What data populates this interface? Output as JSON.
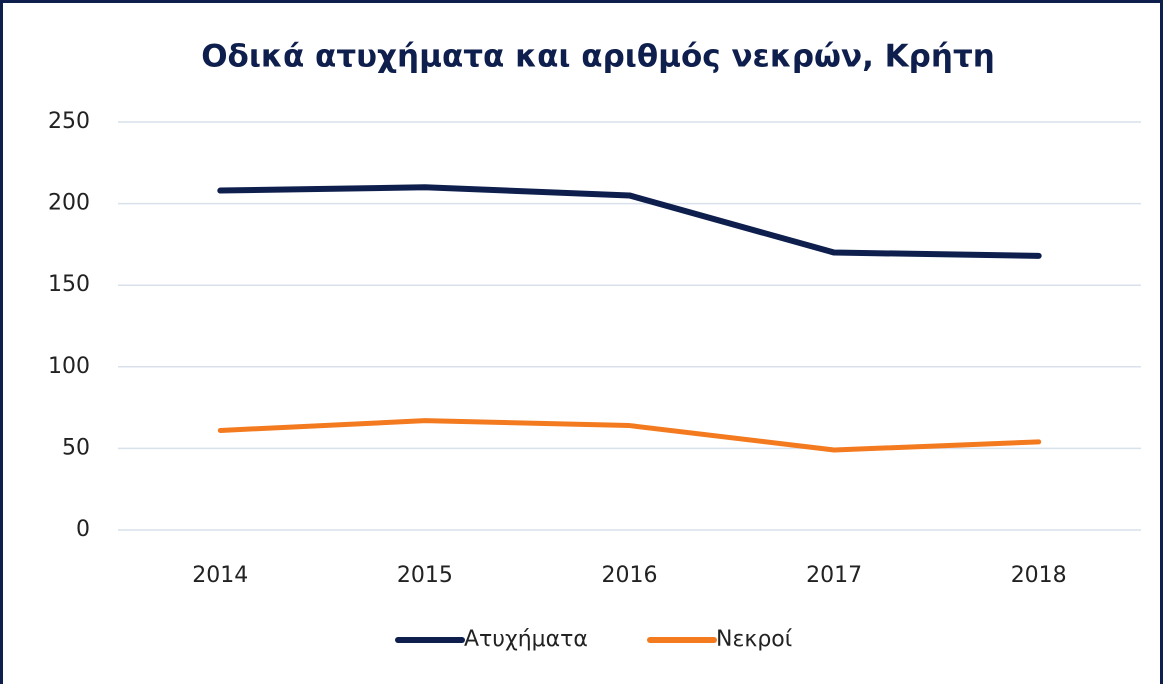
{
  "chart_data": {
    "type": "line",
    "title": "Οδικά ατυχήματα και αριθμός νεκρών, Κρήτη",
    "categories": [
      "2014",
      "2015",
      "2016",
      "2017",
      "2018"
    ],
    "series": [
      {
        "name": "Ατυχήματα",
        "color": "#0e1f4d",
        "values": [
          208,
          210,
          205,
          170,
          168
        ]
      },
      {
        "name": "Νεκροί",
        "color": "#f37a1f",
        "values": [
          61,
          67,
          64,
          49,
          54
        ]
      }
    ],
    "ylim": [
      0,
      250
    ],
    "yticks": [
      0,
      50,
      100,
      150,
      200,
      250
    ],
    "grid": true,
    "legend": "bottom"
  }
}
